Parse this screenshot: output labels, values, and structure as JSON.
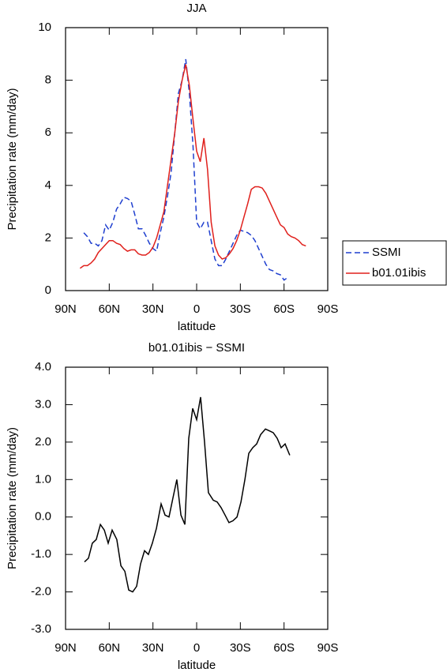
{
  "chart_data": [
    {
      "type": "line",
      "title": "JJA",
      "xlabel": "latitude",
      "ylabel": "Precipitation rate (mm/day)",
      "x": [
        80,
        77.5,
        75,
        72.5,
        70,
        67.5,
        65,
        62.5,
        60,
        57.5,
        55,
        52.5,
        50,
        47.5,
        45,
        42.5,
        40,
        37.5,
        35,
        32.5,
        30,
        27.5,
        25,
        22.5,
        20,
        17.5,
        15,
        12.5,
        10,
        7.5,
        5,
        2.5,
        0,
        -2.5,
        -5,
        -7.5,
        -10,
        -12.5,
        -15,
        -17.5,
        -20,
        -22.5,
        -25,
        -27.5,
        -30,
        -32.5,
        -35,
        -37.5,
        -40,
        -42.5,
        -45,
        -47.5,
        -50,
        -52.5,
        -55,
        -57.5,
        -60,
        -62.5,
        -65,
        -67.5,
        -70,
        -72.5,
        -75
      ],
      "series": [
        {
          "name": "SSMI",
          "color": "#1f3fcf",
          "linestyle": "dashed",
          "values": [
            null,
            2.2,
            2.05,
            1.8,
            1.8,
            1.7,
            1.9,
            2.5,
            2.3,
            2.6,
            3.1,
            3.3,
            3.55,
            3.5,
            3.4,
            2.9,
            2.35,
            2.35,
            2.1,
            1.8,
            1.6,
            1.5,
            2.2,
            2.8,
            3.6,
            4.5,
            6.0,
            7.5,
            8.0,
            8.8,
            7.5,
            5.5,
            2.6,
            2.35,
            2.6,
            2.6,
            1.9,
            1.2,
            0.95,
            0.95,
            1.2,
            1.5,
            1.8,
            2.1,
            2.3,
            2.25,
            2.2,
            2.1,
            1.9,
            1.6,
            1.3,
            1.0,
            0.8,
            0.75,
            0.65,
            0.6,
            0.4,
            0.5,
            null,
            null,
            null,
            null,
            null
          ]
        },
        {
          "name": "b01.01ibis",
          "color": "#e0201c",
          "linestyle": "solid",
          "values": [
            0.85,
            0.95,
            0.95,
            1.05,
            1.2,
            1.45,
            1.6,
            1.75,
            1.9,
            1.9,
            1.8,
            1.75,
            1.6,
            1.5,
            1.55,
            1.55,
            1.4,
            1.35,
            1.35,
            1.45,
            1.65,
            2.0,
            2.5,
            3.0,
            4.0,
            5.0,
            6.0,
            7.2,
            8.0,
            8.6,
            7.8,
            6.5,
            5.3,
            4.9,
            5.8,
            4.6,
            2.6,
            1.7,
            1.35,
            1.2,
            1.25,
            1.4,
            1.6,
            1.9,
            2.3,
            2.8,
            3.3,
            3.85,
            3.95,
            3.95,
            3.9,
            3.7,
            3.4,
            3.1,
            2.8,
            2.5,
            2.4,
            2.15,
            2.05,
            2.0,
            1.9,
            1.75,
            1.7
          ]
        }
      ],
      "xlim": [
        90,
        -90
      ],
      "xticks": [
        {
          "value": 90,
          "label": "90N"
        },
        {
          "value": 60,
          "label": "60N"
        },
        {
          "value": 30,
          "label": "30N"
        },
        0,
        {
          "value": -30,
          "label": "30S"
        },
        {
          "value": -60,
          "label": "60S"
        },
        {
          "value": -90,
          "label": "90S"
        }
      ],
      "ylim": [
        0,
        10
      ],
      "yticks": [
        0,
        2,
        4,
        6,
        8,
        10
      ],
      "legend": "right"
    },
    {
      "type": "line",
      "title": "b01.01ibis − SSMI",
      "xlabel": "latitude",
      "ylabel": "Precipitation rate (mm/day)",
      "x": [
        77.0,
        74.3,
        71.6,
        68.9,
        66.1,
        63.4,
        60.7,
        58.0,
        54.8,
        52.0,
        49.3,
        46.6,
        43.9,
        41.2,
        38.5,
        35.8,
        33.1,
        30.4,
        27.6,
        24.4,
        21.7,
        19.0,
        16.3,
        13.6,
        10.8,
        8.1,
        5.4,
        2.7,
        0.0,
        -2.7,
        -5.4,
        -8.1,
        -11.4,
        -14.1,
        -16.8,
        -19.5,
        -22.2,
        -24.9,
        -27.7,
        -30.4,
        -33.1,
        -35.8,
        -38.5,
        -41.2,
        -43.9,
        -47.2,
        -49.9,
        -52.6,
        -55.3,
        -58.0,
        -60.7,
        -63.9
      ],
      "series": [
        {
          "name": "b01.01ibis − SSMI",
          "color": "#000000",
          "linestyle": "solid",
          "values": [
            -1.2,
            -1.1,
            -0.7,
            -0.6,
            -0.2,
            -0.35,
            -0.7,
            -0.35,
            -0.6,
            -1.3,
            -1.45,
            -1.95,
            -2.0,
            -1.85,
            -1.25,
            -0.9,
            -1.0,
            -0.7,
            -0.3,
            0.35,
            0.05,
            0.0,
            0.5,
            1.0,
            0.05,
            -0.2,
            2.1,
            2.9,
            2.6,
            3.2,
            2.0,
            0.65,
            0.45,
            0.4,
            0.25,
            0.05,
            -0.15,
            -0.1,
            0.0,
            0.4,
            1.0,
            1.7,
            1.85,
            1.95,
            2.2,
            2.35,
            2.3,
            2.25,
            2.1,
            1.85,
            1.95,
            1.65
          ]
        }
      ],
      "xlim": [
        90,
        -90
      ],
      "xticks": [
        {
          "value": 90,
          "label": "90N"
        },
        {
          "value": 60,
          "label": "60N"
        },
        {
          "value": 30,
          "label": "30N"
        },
        0,
        {
          "value": -30,
          "label": "30S"
        },
        {
          "value": -60,
          "label": "60S"
        },
        {
          "value": -90,
          "label": "90S"
        }
      ],
      "ylim": [
        -3,
        4
      ],
      "yticks": [
        {
          "value": -3,
          "label": "-3.0"
        },
        {
          "value": -2,
          "label": "-2.0"
        },
        {
          "value": -1,
          "label": "-1.0"
        },
        {
          "value": 0,
          "label": "0.0"
        },
        {
          "value": 1,
          "label": "1.0"
        },
        {
          "value": 2,
          "label": "2.0"
        },
        {
          "value": 3,
          "label": "3.0"
        },
        {
          "value": 4,
          "label": "4.0"
        }
      ]
    }
  ]
}
